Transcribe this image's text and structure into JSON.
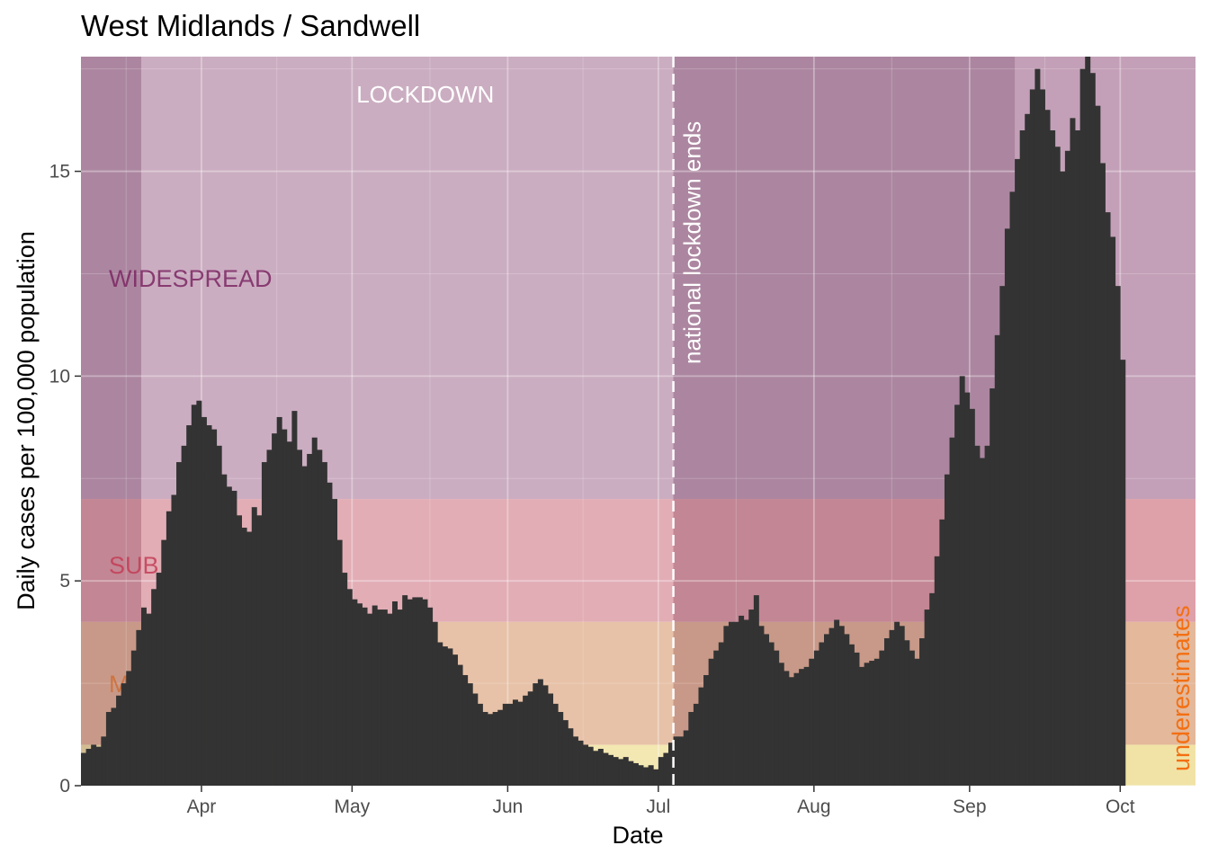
{
  "chart_data": {
    "type": "bar",
    "title": "West Midlands / Sandwell",
    "xlabel": "Date",
    "ylabel": "Daily cases per 100,000 population",
    "x_start": "2020-03-08",
    "x_end": "2020-10-16",
    "ylim": [
      0,
      17.8
    ],
    "y_ticks": [
      0,
      5,
      10,
      15
    ],
    "x_ticks": [
      {
        "date": "2020-04-01",
        "label": "Apr"
      },
      {
        "date": "2020-05-01",
        "label": "May"
      },
      {
        "date": "2020-06-01",
        "label": "Jun"
      },
      {
        "date": "2020-07-01",
        "label": "Jul"
      },
      {
        "date": "2020-08-01",
        "label": "Aug"
      },
      {
        "date": "2020-09-01",
        "label": "Sep"
      },
      {
        "date": "2020-10-01",
        "label": "Oct"
      }
    ],
    "grid": true,
    "bands": [
      {
        "label": "",
        "from": 0,
        "to": 1,
        "color": "#f1e3a6"
      },
      {
        "label": "M",
        "from": 1,
        "to": 4,
        "color": "#e4b89a",
        "text_color": "#cf6d35"
      },
      {
        "label": "SUB",
        "from": 4,
        "to": 7,
        "color": "#dea0a9",
        "text_color": "#c33d56"
      },
      {
        "label": "WIDESPREAD",
        "from": 7,
        "to": 17.8,
        "color": "#c3a0b7",
        "text_color": "#7b2763"
      }
    ],
    "lockdown": {
      "label": "LOCKDOWN",
      "from": "2020-03-20",
      "to": "2020-07-04"
    },
    "local_restriction_from": "2020-09-10",
    "vline": {
      "date": "2020-07-04",
      "label": "national lockdown ends"
    },
    "corner_note": "underestimates",
    "points": [
      [
        0,
        0.8
      ],
      [
        1,
        0.9
      ],
      [
        2,
        1.0
      ],
      [
        3,
        0.95
      ],
      [
        4,
        1.2
      ],
      [
        5,
        1.8
      ],
      [
        6,
        1.9
      ],
      [
        7,
        2.2
      ],
      [
        8,
        2.5
      ],
      [
        9,
        2.8
      ],
      [
        10,
        3.3
      ],
      [
        11,
        3.8
      ],
      [
        12,
        4.35
      ],
      [
        13,
        4.2
      ],
      [
        14,
        4.8
      ],
      [
        15,
        5.2
      ],
      [
        16,
        6.0
      ],
      [
        17,
        6.7
      ],
      [
        18,
        7.1
      ],
      [
        19,
        7.9
      ],
      [
        20,
        8.3
      ],
      [
        21,
        8.8
      ],
      [
        22,
        9.3
      ],
      [
        23,
        9.4
      ],
      [
        24,
        9.0
      ],
      [
        25,
        8.8
      ],
      [
        26,
        8.7
      ],
      [
        27,
        8.3
      ],
      [
        28,
        7.6
      ],
      [
        29,
        7.3
      ],
      [
        30,
        7.2
      ],
      [
        31,
        6.6
      ],
      [
        32,
        6.3
      ],
      [
        33,
        6.2
      ],
      [
        34,
        6.8
      ],
      [
        35,
        6.6
      ],
      [
        36,
        7.9
      ],
      [
        37,
        8.2
      ],
      [
        38,
        8.6
      ],
      [
        39,
        9.0
      ],
      [
        40,
        8.7
      ],
      [
        41,
        8.4
      ],
      [
        42,
        9.15
      ],
      [
        43,
        8.2
      ],
      [
        44,
        7.8
      ],
      [
        45,
        8.1
      ],
      [
        46,
        8.5
      ],
      [
        47,
        8.2
      ],
      [
        48,
        7.9
      ],
      [
        49,
        7.4
      ],
      [
        50,
        7.0
      ],
      [
        51,
        6.0
      ],
      [
        52,
        5.2
      ],
      [
        53,
        4.8
      ],
      [
        54,
        4.55
      ],
      [
        55,
        4.45
      ],
      [
        56,
        4.35
      ],
      [
        57,
        4.2
      ],
      [
        58,
        4.4
      ],
      [
        59,
        4.3
      ],
      [
        60,
        4.3
      ],
      [
        61,
        4.2
      ],
      [
        62,
        4.5
      ],
      [
        63,
        4.3
      ],
      [
        64,
        4.65
      ],
      [
        65,
        4.55
      ],
      [
        66,
        4.6
      ],
      [
        67,
        4.6
      ],
      [
        68,
        4.55
      ],
      [
        69,
        4.35
      ],
      [
        70,
        4.0
      ],
      [
        71,
        3.5
      ],
      [
        72,
        3.4
      ],
      [
        73,
        3.35
      ],
      [
        74,
        3.2
      ],
      [
        75,
        2.95
      ],
      [
        76,
        2.7
      ],
      [
        77,
        2.5
      ],
      [
        78,
        2.25
      ],
      [
        79,
        2.0
      ],
      [
        80,
        1.8
      ],
      [
        81,
        1.75
      ],
      [
        82,
        1.8
      ],
      [
        83,
        1.85
      ],
      [
        84,
        2.0
      ],
      [
        85,
        2.0
      ],
      [
        86,
        2.1
      ],
      [
        87,
        2.05
      ],
      [
        88,
        2.2
      ],
      [
        89,
        2.3
      ],
      [
        90,
        2.5
      ],
      [
        91,
        2.6
      ],
      [
        92,
        2.45
      ],
      [
        93,
        2.25
      ],
      [
        94,
        2.0
      ],
      [
        95,
        1.8
      ],
      [
        96,
        1.6
      ],
      [
        97,
        1.4
      ],
      [
        98,
        1.2
      ],
      [
        99,
        1.1
      ],
      [
        100,
        1.0
      ],
      [
        101,
        0.95
      ],
      [
        102,
        0.85
      ],
      [
        103,
        0.9
      ],
      [
        104,
        0.8
      ],
      [
        105,
        0.75
      ],
      [
        106,
        0.7
      ],
      [
        107,
        0.65
      ],
      [
        108,
        0.7
      ],
      [
        109,
        0.6
      ],
      [
        110,
        0.55
      ],
      [
        111,
        0.5
      ],
      [
        112,
        0.45
      ],
      [
        113,
        0.5
      ],
      [
        114,
        0.4
      ],
      [
        115,
        0.7
      ],
      [
        116,
        0.8
      ],
      [
        117,
        1.05
      ],
      [
        118,
        1.2
      ],
      [
        119,
        1.2
      ],
      [
        120,
        1.35
      ],
      [
        121,
        1.8
      ],
      [
        122,
        2.0
      ],
      [
        123,
        2.4
      ],
      [
        124,
        2.7
      ],
      [
        125,
        3.1
      ],
      [
        126,
        3.3
      ],
      [
        127,
        3.5
      ],
      [
        128,
        3.9
      ],
      [
        129,
        4.0
      ],
      [
        130,
        4.0
      ],
      [
        131,
        4.15
      ],
      [
        132,
        4.05
      ],
      [
        133,
        4.3
      ],
      [
        134,
        4.65
      ],
      [
        135,
        3.9
      ],
      [
        136,
        3.7
      ],
      [
        137,
        3.5
      ],
      [
        138,
        3.3
      ],
      [
        139,
        3.0
      ],
      [
        140,
        2.8
      ],
      [
        141,
        2.65
      ],
      [
        142,
        2.75
      ],
      [
        143,
        2.85
      ],
      [
        144,
        2.9
      ],
      [
        145,
        3.1
      ],
      [
        146,
        3.3
      ],
      [
        147,
        3.5
      ],
      [
        148,
        3.7
      ],
      [
        149,
        3.85
      ],
      [
        150,
        4.05
      ],
      [
        151,
        3.9
      ],
      [
        152,
        3.7
      ],
      [
        153,
        3.45
      ],
      [
        154,
        3.25
      ],
      [
        155,
        2.9
      ],
      [
        156,
        3.0
      ],
      [
        157,
        3.05
      ],
      [
        158,
        3.1
      ],
      [
        159,
        3.3
      ],
      [
        160,
        3.6
      ],
      [
        161,
        3.8
      ],
      [
        162,
        4.0
      ],
      [
        163,
        3.9
      ],
      [
        164,
        3.55
      ],
      [
        165,
        3.3
      ],
      [
        166,
        3.1
      ],
      [
        167,
        3.6
      ],
      [
        168,
        4.3
      ],
      [
        169,
        4.7
      ],
      [
        170,
        5.6
      ],
      [
        171,
        6.5
      ],
      [
        172,
        7.6
      ],
      [
        173,
        8.5
      ],
      [
        174,
        9.3
      ],
      [
        175,
        10.0
      ],
      [
        176,
        9.6
      ],
      [
        177,
        9.2
      ],
      [
        178,
        8.3
      ],
      [
        179,
        8.0
      ],
      [
        180,
        8.3
      ],
      [
        181,
        9.7
      ],
      [
        182,
        11.0
      ],
      [
        183,
        12.2
      ],
      [
        184,
        13.6
      ],
      [
        185,
        14.5
      ],
      [
        186,
        15.3
      ],
      [
        187,
        16.0
      ],
      [
        188,
        16.4
      ],
      [
        189,
        17.0
      ],
      [
        190,
        17.5
      ],
      [
        191,
        17.0
      ],
      [
        192,
        16.5
      ],
      [
        193,
        16.0
      ],
      [
        194,
        15.6
      ],
      [
        195,
        15.0
      ],
      [
        196,
        15.5
      ],
      [
        197,
        16.3
      ],
      [
        198,
        16.0
      ],
      [
        199,
        17.5
      ],
      [
        200,
        17.8
      ],
      [
        201,
        17.4
      ],
      [
        202,
        16.6
      ],
      [
        203,
        15.2
      ],
      [
        204,
        14.0
      ],
      [
        205,
        13.4
      ],
      [
        206,
        12.2
      ],
      [
        207,
        10.4
      ]
    ]
  }
}
